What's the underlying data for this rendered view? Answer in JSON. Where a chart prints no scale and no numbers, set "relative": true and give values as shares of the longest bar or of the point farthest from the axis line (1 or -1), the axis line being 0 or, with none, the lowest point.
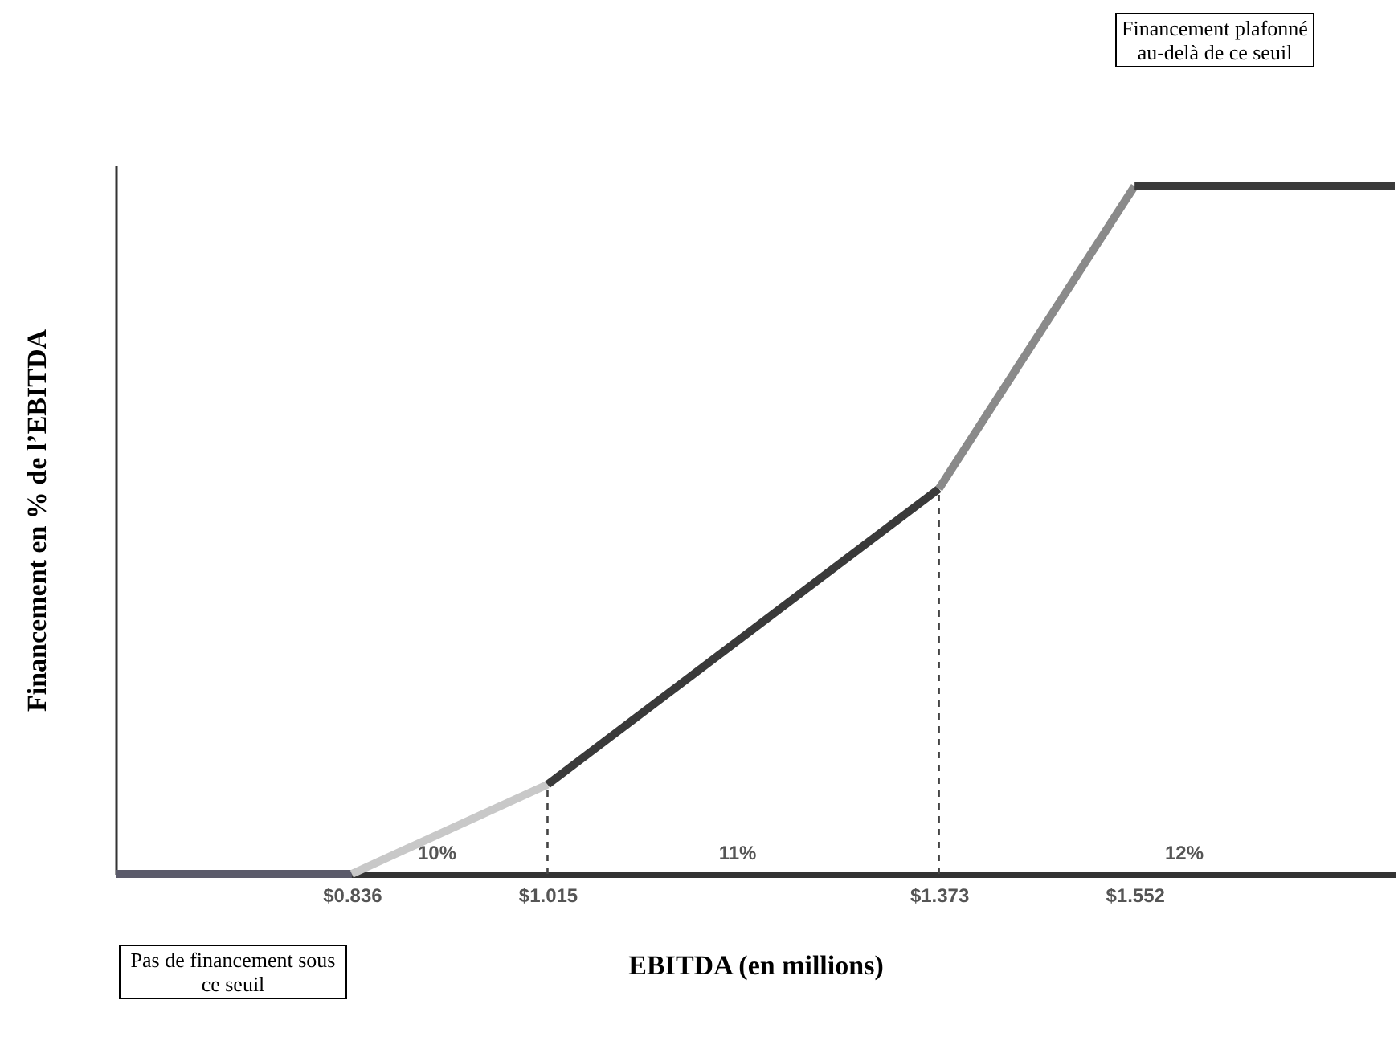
{
  "chart_data": {
    "type": "line",
    "relative": true,
    "xlabel": "EBITDA (en millions)",
    "ylabel": "Financement en % de l’EBITDA",
    "xlim": [
      0.62,
      1.79
    ],
    "xticks": [
      {
        "value": 0.836,
        "label": "$0.836"
      },
      {
        "value": 1.015,
        "label": "$1.015"
      },
      {
        "value": 1.373,
        "label": "$1.373"
      },
      {
        "value": 1.552,
        "label": "$1.552"
      }
    ],
    "series": [
      {
        "color": "#5b5b6b",
        "x": [
          0.62,
          0.836
        ],
        "values": [
          0,
          0
        ]
      },
      {
        "color": "#c8c8c8",
        "x": [
          0.836,
          1.015
        ],
        "values": [
          0,
          0.13
        ]
      },
      {
        "color": "#3a3a3a",
        "x": [
          1.015,
          1.373
        ],
        "values": [
          0.13,
          0.56
        ]
      },
      {
        "color": "#8a8a8a",
        "x": [
          1.373,
          1.552
        ],
        "values": [
          0.56,
          1
        ]
      },
      {
        "color": "#3a3a3a",
        "x": [
          1.552,
          1.79
        ],
        "values": [
          1,
          1
        ]
      }
    ],
    "ref_lines": [
      {
        "axis": "x",
        "value": 1.015,
        "line_style": "dashed"
      },
      {
        "axis": "x",
        "value": 1.373,
        "line_style": "dashed"
      }
    ],
    "annotations": [
      "10%",
      "11%",
      "12%",
      "Pas de financement sous ce seuil",
      "Financement plafonné au-delà de ce seuil"
    ],
    "grid": false
  }
}
